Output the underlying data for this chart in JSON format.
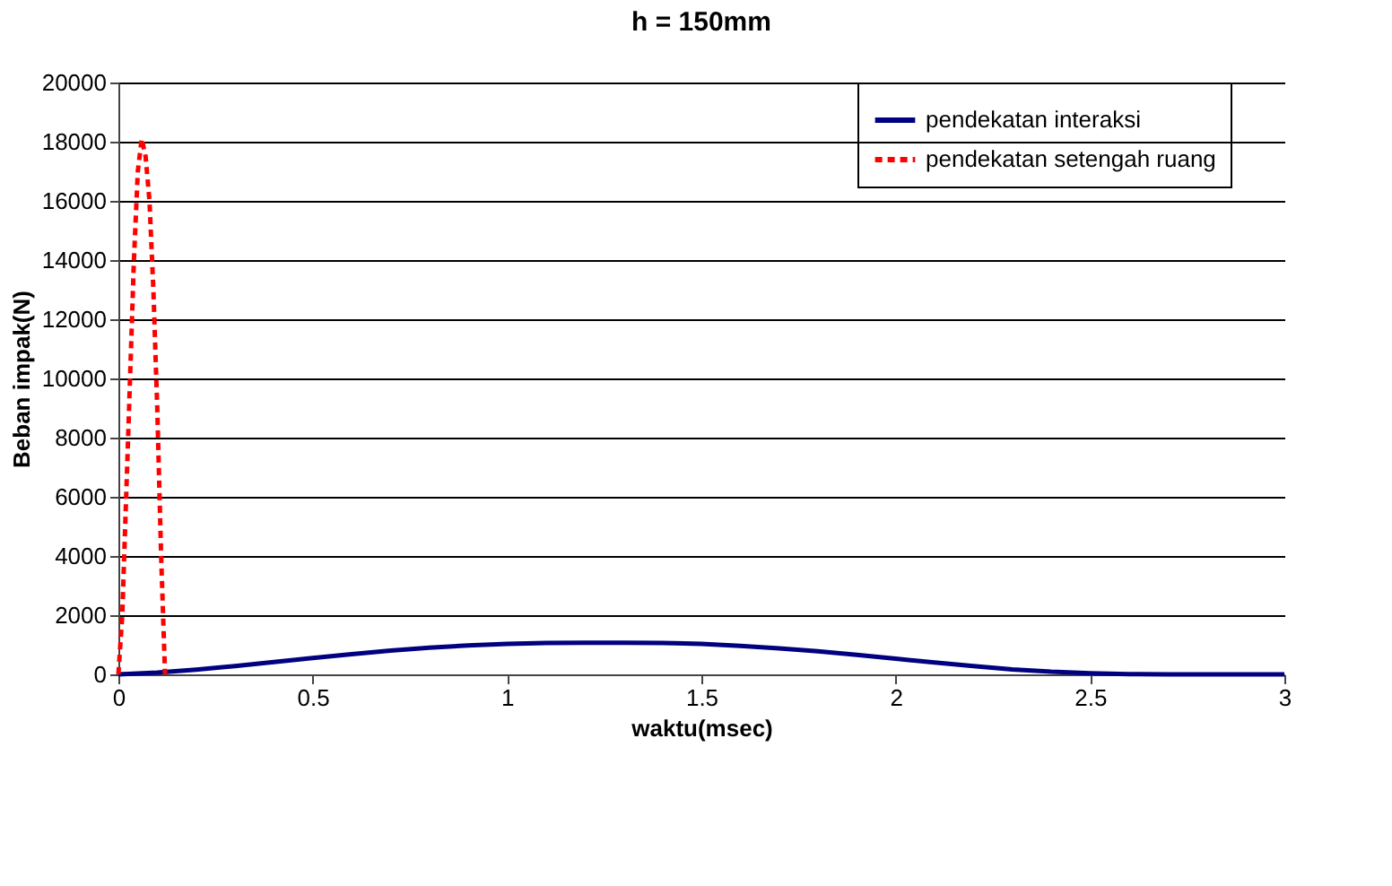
{
  "chart_data": {
    "type": "line",
    "title": "h = 150mm",
    "xlabel": "waktu(msec)",
    "ylabel": "Beban impak(N)",
    "xlim": [
      0,
      3
    ],
    "xticks": [
      0,
      0.5,
      1,
      1.5,
      2,
      2.5,
      3
    ],
    "ylim": [
      0,
      20000
    ],
    "yticks": [
      0,
      2000,
      4000,
      6000,
      8000,
      10000,
      12000,
      14000,
      16000,
      18000,
      20000
    ],
    "grid": "y",
    "legend": "right",
    "marker": "none",
    "series": [
      {
        "name": "pendekatan interaksi",
        "color": "#000080",
        "line_style": "solid",
        "x": [
          0,
          0.1,
          0.2,
          0.3,
          0.4,
          0.5,
          0.6,
          0.7,
          0.8,
          0.9,
          1.0,
          1.1,
          1.2,
          1.3,
          1.4,
          1.5,
          1.6,
          1.7,
          1.8,
          1.9,
          2.0,
          2.1,
          2.2,
          2.3,
          2.4,
          2.5,
          2.6,
          2.7,
          2.8,
          2.9,
          3.0
        ],
        "values": [
          0,
          60,
          160,
          280,
          420,
          550,
          680,
          800,
          900,
          980,
          1030,
          1060,
          1070,
          1070,
          1060,
          1030,
          960,
          880,
          780,
          660,
          530,
          400,
          280,
          170,
          90,
          40,
          10,
          0,
          0,
          0,
          0
        ]
      },
      {
        "name": "pendekatan setengah ruang",
        "color": "#ff0000",
        "line_style": "dashed",
        "x": [
          0,
          0.01,
          0.02,
          0.03,
          0.04,
          0.05,
          0.06,
          0.07,
          0.08,
          0.09,
          0.1,
          0.11,
          0.12
        ],
        "values": [
          0,
          2000,
          6000,
          10000,
          14000,
          17000,
          18100,
          17500,
          16000,
          13000,
          9000,
          4000,
          0
        ]
      }
    ]
  }
}
